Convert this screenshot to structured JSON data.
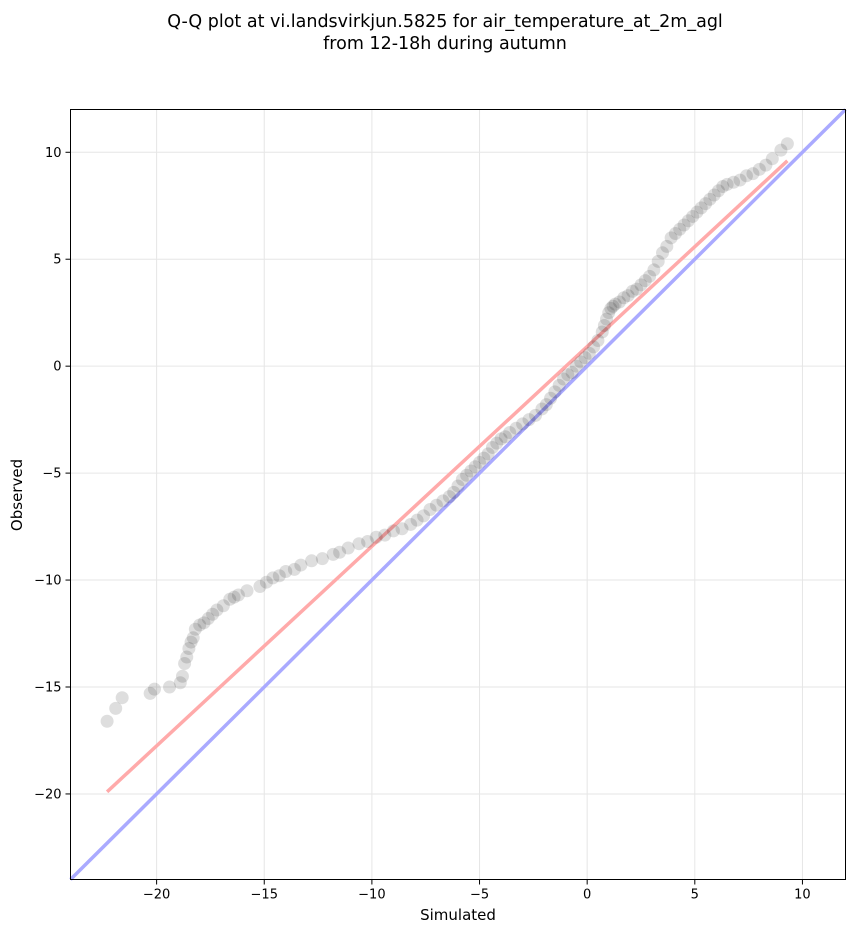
{
  "chart_data": {
    "type": "scatter",
    "title_lines": [
      "Q-Q plot at vi.landsvirkjun.5825 for air_temperature_at_2m_agl",
      "from 12-18h during autumn"
    ],
    "xlabel": "Simulated",
    "ylabel": "Observed",
    "xlim": [
      -24,
      12
    ],
    "ylim": [
      -24,
      12
    ],
    "xticks": [
      -20,
      -15,
      -10,
      -5,
      0,
      5,
      10
    ],
    "yticks": [
      -20,
      -15,
      -10,
      -5,
      0,
      5,
      10
    ],
    "xtick_labels": [
      "−20",
      "−15",
      "−10",
      "−5",
      "0",
      "5",
      "10"
    ],
    "ytick_labels": [
      "−20",
      "−15",
      "−10",
      "−5",
      "0",
      "5",
      "10"
    ],
    "grid": true,
    "colors": {
      "points": "#000000",
      "reference_line": "#aaaaff",
      "fit_line": "#ffaaaa"
    },
    "reference_line": {
      "x": [
        -24,
        12
      ],
      "y": [
        -24,
        12
      ]
    },
    "fit_line": {
      "x": [
        -22.3,
        9.3
      ],
      "y": [
        -19.9,
        9.6
      ]
    },
    "series": [
      {
        "x": [
          -22.3,
          -21.9,
          -21.6,
          -20.3,
          -20.1,
          -19.4,
          -18.9,
          -18.8,
          -18.7,
          -18.6,
          -18.5,
          -18.4,
          -18.3,
          -18.2,
          -18.0,
          -17.8,
          -17.6,
          -17.4,
          -17.2,
          -16.9,
          -16.6,
          -16.4,
          -16.2,
          -15.8,
          -15.2,
          -14.9,
          -14.6,
          -14.3,
          -14.0,
          -13.6,
          -13.3,
          -12.8,
          -12.3,
          -11.8,
          -11.5,
          -11.1,
          -10.6,
          -10.2,
          -9.8,
          -9.4,
          -9.0,
          -8.6,
          -8.2,
          -7.9,
          -7.6,
          -7.3,
          -7.0,
          -6.7,
          -6.4,
          -6.2,
          -6.0,
          -5.8,
          -5.6,
          -5.4,
          -5.2,
          -5.0,
          -4.8,
          -4.6,
          -4.4,
          -4.2,
          -4.0,
          -3.8,
          -3.6,
          -3.3,
          -3.0,
          -2.7,
          -2.4,
          -2.1,
          -1.9,
          -1.7,
          -1.5,
          -1.3,
          -1.1,
          -0.9,
          -0.7,
          -0.5,
          -0.3,
          -0.1,
          0.1,
          0.3,
          0.5,
          0.7,
          0.8,
          0.9,
          1.0,
          1.1,
          1.2,
          1.3,
          1.5,
          1.7,
          1.9,
          2.1,
          2.3,
          2.5,
          2.7,
          2.9,
          3.1,
          3.3,
          3.5,
          3.7,
          3.9,
          4.1,
          4.3,
          4.5,
          4.7,
          4.9,
          5.1,
          5.3,
          5.5,
          5.7,
          5.9,
          6.1,
          6.3,
          6.5,
          6.8,
          7.1,
          7.4,
          7.7,
          8.0,
          8.3,
          8.6,
          9.0,
          9.3
        ],
        "y": [
          -16.6,
          -16.0,
          -15.5,
          -15.3,
          -15.1,
          -15.0,
          -14.8,
          -14.5,
          -13.9,
          -13.6,
          -13.2,
          -12.9,
          -12.7,
          -12.3,
          -12.1,
          -12.0,
          -11.8,
          -11.6,
          -11.4,
          -11.2,
          -10.9,
          -10.8,
          -10.7,
          -10.5,
          -10.3,
          -10.1,
          -9.9,
          -9.8,
          -9.6,
          -9.5,
          -9.3,
          -9.1,
          -9.0,
          -8.8,
          -8.7,
          -8.5,
          -8.3,
          -8.2,
          -8.0,
          -7.9,
          -7.7,
          -7.6,
          -7.4,
          -7.2,
          -7.0,
          -6.7,
          -6.5,
          -6.3,
          -6.1,
          -5.9,
          -5.6,
          -5.3,
          -5.1,
          -4.9,
          -4.7,
          -4.5,
          -4.3,
          -4.1,
          -3.8,
          -3.6,
          -3.4,
          -3.3,
          -3.1,
          -2.9,
          -2.7,
          -2.5,
          -2.3,
          -2.0,
          -1.8,
          -1.5,
          -1.2,
          -0.9,
          -0.6,
          -0.4,
          -0.3,
          0.0,
          0.2,
          0.4,
          0.6,
          0.9,
          1.2,
          1.6,
          1.9,
          2.2,
          2.5,
          2.7,
          2.8,
          2.9,
          3.0,
          3.2,
          3.3,
          3.5,
          3.6,
          3.8,
          4.0,
          4.2,
          4.5,
          4.9,
          5.3,
          5.6,
          6.0,
          6.2,
          6.4,
          6.6,
          6.8,
          7.0,
          7.2,
          7.4,
          7.6,
          7.8,
          8.0,
          8.2,
          8.4,
          8.5,
          8.6,
          8.7,
          8.9,
          9.0,
          9.2,
          9.4,
          9.7,
          10.1,
          10.4
        ]
      }
    ]
  }
}
